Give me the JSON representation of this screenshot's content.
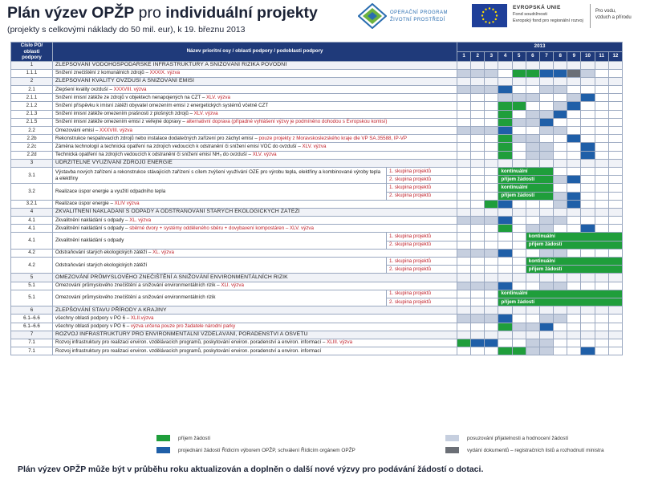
{
  "header": {
    "title_bold": "Plán výzev OPŽP",
    "title_light": " pro ",
    "title_rest": "individuální projekty",
    "subtitle": "(projekty s celkovými náklady do 50 mil. eur), k 19. březnu 2013",
    "op_line1": "OPERAČNÍ PROGRAM",
    "op_line2": "ŽIVOTNÍ PROSTŘEDÍ",
    "eu_line1": "EVROPSKÁ UNIE",
    "eu_line2": "Fond soudržnosti",
    "eu_line3": "Evropský fond pro regionální rozvoj",
    "motto_line1": "Pro vodu,",
    "motto_line2": "vzduch a přírodu",
    "colors": {
      "green": "#1f9e3b",
      "blue": "#1f5fa8",
      "light": "#c6cfdf",
      "dark": "#6b6f76",
      "header": "#1f3a7a"
    }
  },
  "table": {
    "col_code_label": "Číslo PO/ oblasti podpory",
    "col_name_label": "Název prioritní osy / oblasti podpory / podoblasti podpory",
    "year": "2013",
    "months": [
      "1",
      "2",
      "3",
      "4",
      "5",
      "6",
      "7",
      "8",
      "9",
      "10",
      "11",
      "12"
    ],
    "continuous_line1": "kontinuální",
    "continuous_line2": "příjem žádostí"
  },
  "rows": [
    {
      "code": "1",
      "name": "ZLEPŠOVÁNÍ VODOHOSPODÁŘSKÉ INFRASTRUKTURY A SNIŽOVÁNÍ RIZIKA POVODNÍ",
      "type": "section"
    },
    {
      "code": "1.1.1",
      "name": "Snížení znečištění z komunálních zdrojů – ",
      "sub": "XXXIX. výzva",
      "cells": "lll.ggbbdl.."
    },
    {
      "code": "2",
      "name": "ZLEPŠOVÁNÍ KVALITY OVZDUŠÍ A SNIŽOVÁNÍ EMISÍ",
      "type": "section"
    },
    {
      "code": "2.1",
      "name": "Zlepšení kvality ovzduší – ",
      "sub": "XXXVIII. výzva",
      "cells": "lllb..ll...."
    },
    {
      "code": "2.1.1",
      "name": "Snížení imisní zátěže ze zdrojů v objektech nenapojených na CZT – ",
      "sub": "XLV. výzva",
      "cells": "...lll..lb.."
    },
    {
      "code": "2.1.2",
      "name": "Snížení příspěvku k imisní zátěži obyvatel omezením emisí z energetických systémů včetně CZT",
      "sub": "",
      "cells": "...gg..lb..."
    },
    {
      "code": "2.1.3",
      "name": "Snížení imisní zátěže omezením prašnosti z plošných zdrojů – ",
      "sub": "XLV. výzva",
      "cells": "...g.llb...."
    },
    {
      "code": "2.1.5",
      "name": "Snížení imisní zátěže omezením emisí z veřejné dopravy – ",
      "sub": "alternativní doprava (případné vyhlášení výzvy je podmíněno dohodou s Evropskou komisí)",
      "cells": "...gllb....."
    },
    {
      "code": "2.2",
      "name": "Omezování emisí – ",
      "sub": "XXXVIII. výzva",
      "cells": "lllb..ll...."
    },
    {
      "code": "2.2b",
      "name": "Rekonstrukce nespalovacích zdrojů nebo instalace dodatečných zařízení pro záchyt emisí – ",
      "sub": "pouze projekty z Moravskoslezského kraje dle VP SA.35588, IP-VP",
      "cells": "...gll..b..."
    },
    {
      "code": "2.2c",
      "name": "Záměna technologií a technická opatření na zdrojích vedoucích k odstranění či snížení emisí VOC do ovzduší – ",
      "sub": "XLV. výzva",
      "cells": "...g.ll..b.."
    },
    {
      "code": "2.2d",
      "name": "Technická opatření na zdrojích vedoucích k odstranění či snížení emisí NH₃ do ovzduší – ",
      "sub": "XLV. výzva",
      "cells": "...g.ll..b.."
    },
    {
      "code": "3",
      "name": "UDRŽITELNÉ VYUŽÍVÁNÍ ZDROJŮ ENERGIE",
      "type": "section"
    },
    {
      "code": "3.1",
      "name": "Výstavba nových zařízení a rekonstrukce stávajících zařízení s cílem zvýšení využívání OZE pro výrobu tepla, elektřiny a kombinované výroby tepla a elektřiny",
      "type": "grouped",
      "groups": [
        {
          "label": "1. skupina projektů",
          "cells": "...KKKK.....",
          "kont": 1
        },
        {
          "label": "2. skupina projektů",
          "cells": "...KKKKlb...",
          "kont": 2
        }
      ]
    },
    {
      "code": "3.2",
      "name": "Realizace úspor energie a využití odpadního tepla",
      "type": "grouped",
      "groups": [
        {
          "label": "1. skupina projektů",
          "cells": "...KKKK.....",
          "kont": 1
        },
        {
          "label": "2. skupina projektů",
          "cells": "...KKKKlb...",
          "kont": 2
        }
      ]
    },
    {
      "code": "3.2.1",
      "name": "Realizace úspor energie – ",
      "sub": "XLIV výzva",
      "cells": "..gb...lb..."
    },
    {
      "code": "4",
      "name": "ZKVALITNĚNÍ NAKLÁDÁNÍ S ODPADY A ODSTRAŇOVÁNÍ STARÝCH EKOLOGICKÝCH ZÁTĚŽÍ",
      "type": "section"
    },
    {
      "code": "4.1",
      "name": "Zkvalitnění nakládání s odpady – ",
      "sub": "XL. výzva",
      "cells": "lllb..ll...."
    },
    {
      "code": "4.1",
      "name": "Zkvalitnění nakládání s odpady – ",
      "sub": "sběrné dvory + systémy odděleného sběru + dovybavení kompostáren – XLV. výzva",
      "cells": "...g.ll..b.."
    },
    {
      "code": "4.1",
      "name": "Zkvalitnění nakládání s odpady",
      "type": "grouped",
      "groups": [
        {
          "label": "1. skupina projektů",
          "cells": ".....KKKKKKK",
          "kont": 1
        },
        {
          "label": "2. skupina projektů",
          "cells": ".....KKKKKKK",
          "kont": 2
        }
      ]
    },
    {
      "code": "4.2",
      "name": "Odstraňování starých ekologických zátěží – ",
      "sub": "XL. výzva",
      "cells": "lllb..ll...."
    },
    {
      "code": "4.2",
      "name": "Odstraňování starých ekologických zátěží",
      "type": "grouped",
      "groups": [
        {
          "label": "1. skupina projektů",
          "cells": ".....KKKKKKK",
          "kont": 1
        },
        {
          "label": "2. skupina projektů",
          "cells": ".....KKKKKKK",
          "kont": 2
        }
      ]
    },
    {
      "code": "5",
      "name": "OMEZOVÁNÍ PRŮMYSLOVÉHO ZNEČIŠTĚNÍ A SNIŽOVÁNÍ ENVIRONMENTÁLNÍCH RIZIK",
      "type": "section"
    },
    {
      "code": "5.1",
      "name": "Omezování průmyslového znečištění a snižování environmentálních rizik – ",
      "sub": "XLI. výzva",
      "cells": "lllb..ll...."
    },
    {
      "code": "5.1",
      "name": "Omezování průmyslového znečištění a snižování environmentálních rizik",
      "type": "grouped",
      "groups": [
        {
          "label": "1. skupina projektů",
          "cells": "...KKKKKKKKK",
          "kont": 1
        },
        {
          "label": "2. skupina projektů",
          "cells": "...KKKKKKKKK",
          "kont": 2
        }
      ]
    },
    {
      "code": "6",
      "name": "ZLEPŠOVÁNÍ STAVU PŘÍRODY A KRAJINY",
      "type": "section"
    },
    {
      "code": "6.1–6.6",
      "name": "všechny oblasti podpory v PO 6 – ",
      "sub": "XLII.výzva",
      "cells": "lllb..ll...."
    },
    {
      "code": "6.1–6.6",
      "name": "všechny oblasti podpory v PO 6 – ",
      "sub": "výzva určena pouze pro žadatele národní parky",
      "cells": "...gllb....."
    },
    {
      "code": "7",
      "name": "ROZVOJ INFRASTRUKTURY PRO ENVIRONMENTÁLNÍ VZDĚLÁVÁNÍ, PORADENSTVÍ A OSVĚTU",
      "type": "section"
    },
    {
      "code": "7.1",
      "name": "Rozvoj infrastruktury pro realizaci environ. vzdělávacích programů, poskytování environ. poradenství a environ. informací – ",
      "sub": "XLIII. výzva",
      "cells": "gbb..ll....."
    },
    {
      "code": "7.1",
      "name": "Rozvoj infrastruktury pro realizaci environ. vzdělávacích programů, poskytování environ. poradenství a environ. informací",
      "sub": "",
      "cells": "...ggll..b.."
    }
  ],
  "legend": {
    "green": "příjem žádostí",
    "light": "posuzování přijatelnosti a hodnocení žádostí",
    "blue": "projednání žádostí Řídicím výborem OPŽP, schválení Řídicím orgánem OPŽP",
    "dark": "vydání dokumentů – registračních listů a rozhodnutí ministra"
  },
  "footer": "Plán výzev OPŽP může být v průběhu roku aktualizován a doplněn o další nové výzvy pro podávání žádostí o dotaci."
}
